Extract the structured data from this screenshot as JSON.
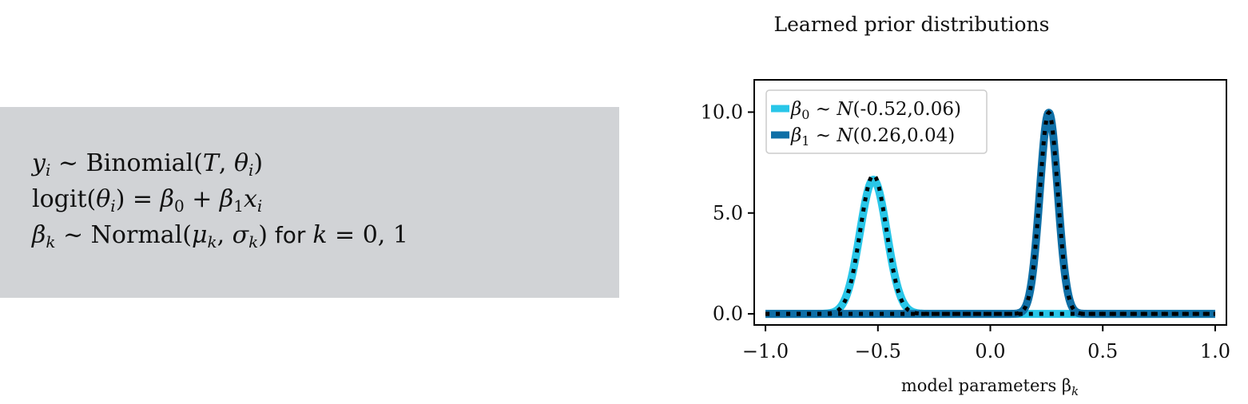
{
  "model": {
    "line1": {
      "y": "y",
      "sub_i": "i",
      "dist": "Binomial(",
      "T": "T",
      "theta": "θ",
      "sub_i2": "i",
      "close": ")"
    },
    "line2": {
      "logit": "logit(",
      "theta": "θ",
      "sub_i": "i",
      "eq": ") = ",
      "b0": "β",
      "sub0": "0",
      "plus": " + ",
      "b1": "β",
      "sub1": "1",
      "x": "x",
      "sub_i2": "i"
    },
    "line3": {
      "b": "β",
      "sub_k": "k",
      "dist": " ~ Normal(",
      "mu": "μ",
      "sub_k2": "k",
      "comma": ", ",
      "sigma": "σ",
      "sub_k3": "k",
      "close": ")",
      "for": " for ",
      "k": "k",
      "vals": " = 0, 1"
    }
  },
  "chart_data": {
    "type": "line",
    "title": "Learned prior distributions",
    "xlabel": "model parameters β",
    "xlabel_sub": "k",
    "ylabel": "",
    "xlim": [
      -1.05,
      1.05
    ],
    "ylim": [
      -0.55,
      11.6
    ],
    "xticks": [
      -1.0,
      -0.5,
      0.0,
      0.5,
      1.0
    ],
    "xtick_labels": [
      "−1.0",
      "−0.5",
      "0.0",
      "0.5",
      "1.0"
    ],
    "yticks": [
      0.0,
      5.0,
      10.0
    ],
    "ytick_labels": [
      "0.0",
      "5.0",
      "10.0"
    ],
    "grid": false,
    "legend_position": "top-left",
    "x_range": [
      -1.0,
      1.0
    ],
    "series": [
      {
        "name": "β0 ~ N(-0.52,0.06)",
        "legend_sym": "β",
        "legend_sub": "0",
        "legend_rest": " ~ ",
        "legend_N": "N",
        "legend_params": "(-0.52,0.06)",
        "mean": -0.52,
        "sd": 0.06,
        "color": "#29c6e8",
        "style": "solid"
      },
      {
        "name": "β1 ~ N(0.26,0.04)",
        "legend_sym": "β",
        "legend_sub": "1",
        "legend_rest": " ~ ",
        "legend_N": "N",
        "legend_params": "(0.26,0.04)",
        "mean": 0.26,
        "sd": 0.04,
        "color": "#0f6fa6",
        "style": "solid"
      }
    ],
    "reference_curves": [
      {
        "mean": -0.52,
        "sd": 0.058,
        "color": "#000000",
        "style": "dotted"
      },
      {
        "mean": 0.26,
        "sd": 0.04,
        "color": "#000000",
        "style": "dotted"
      }
    ]
  }
}
